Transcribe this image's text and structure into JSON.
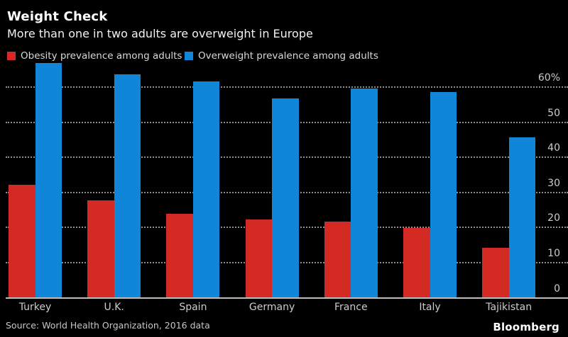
{
  "header": {
    "title": "Weight Check",
    "subtitle": "More than one in two adults are overweight in Europe"
  },
  "colors": {
    "background": "#000000",
    "obesity_red": "#d42a24",
    "overweight_blue": "#1086d8",
    "grid": "#8f8f8f",
    "axis_text": "#cccccc"
  },
  "chart_data": {
    "type": "bar",
    "categories": [
      "Turkey",
      "U.K.",
      "Spain",
      "Germany",
      "France",
      "Italy",
      "Tajikistan"
    ],
    "series": [
      {
        "name": "Obesity prevalence among adults",
        "color": "#d42a24",
        "values": [
          32.1,
          27.8,
          23.8,
          22.3,
          21.6,
          19.9,
          14.2
        ]
      },
      {
        "name": "Overweight prevalence among adults",
        "color": "#1086d8",
        "values": [
          66.8,
          63.7,
          61.6,
          56.8,
          59.5,
          58.5,
          45.7
        ]
      }
    ],
    "title": "Weight Check",
    "subtitle": "More than one in two adults are overweight in Europe",
    "xlabel": "",
    "ylabel": "",
    "ylim": [
      0,
      68
    ],
    "yticks": [
      0,
      10,
      20,
      30,
      40,
      50,
      60
    ],
    "ytick_labels": [
      "0",
      "10",
      "20",
      "30",
      "40",
      "50",
      "60%"
    ],
    "grid": "horizontal-dotted",
    "legend_position": "top",
    "unit": "%"
  },
  "footer": {
    "source": "Source: World Health Organization, 2016 data",
    "brand": "Bloomberg"
  }
}
